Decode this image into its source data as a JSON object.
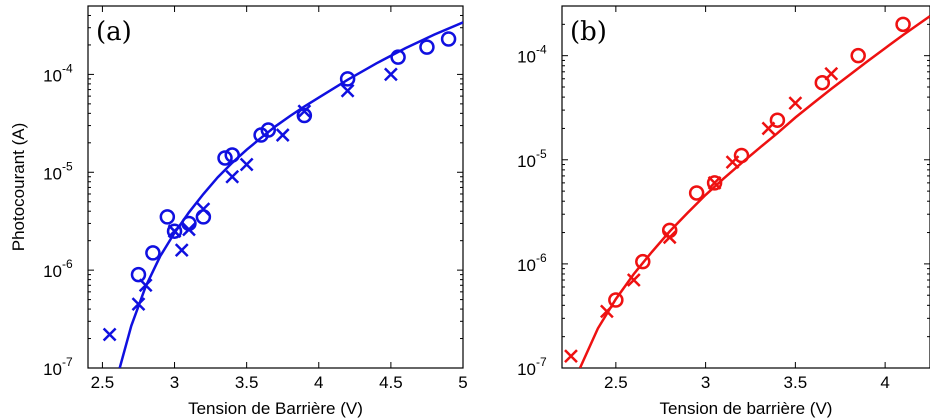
{
  "chart_data": [
    {
      "type": "scatter",
      "panel_label": "(a)",
      "xlabel": "Tension de Barrière (V)",
      "ylabel": "Photocourant (A)",
      "color": "#1010e0",
      "xlim": [
        2.4,
        5.0
      ],
      "ylim": [
        1e-07,
        0.0005
      ],
      "yscale": "log",
      "grid": false,
      "xticks": [
        2.5,
        3,
        3.5,
        4,
        4.5,
        5
      ],
      "xtick_labels": [
        "2.5",
        "3",
        "3.5",
        "4",
        "4.5",
        "5"
      ],
      "ytick_exponents": [
        -7,
        -6,
        -5,
        -4
      ],
      "ytick_labels": [
        "10",
        "10",
        "10",
        "10"
      ],
      "ytick_sup": [
        "-7",
        "-6",
        "-5",
        "-4"
      ],
      "series": [
        {
          "marker": "circle",
          "x": [
            2.75,
            2.85,
            2.95,
            3.0,
            3.1,
            3.2,
            3.35,
            3.4,
            3.6,
            3.65,
            3.9,
            4.2,
            4.55,
            4.75,
            4.9
          ],
          "y": [
            9e-07,
            1.5e-06,
            3.5e-06,
            2.5e-06,
            3e-06,
            3.5e-06,
            1.4e-05,
            1.5e-05,
            2.4e-05,
            2.7e-05,
            3.8e-05,
            9e-05,
            0.00015,
            0.00019,
            0.00023
          ]
        },
        {
          "marker": "x",
          "x": [
            2.55,
            2.75,
            2.8,
            3.0,
            3.05,
            3.1,
            3.2,
            3.4,
            3.5,
            3.75,
            3.9,
            4.2,
            4.5
          ],
          "y": [
            2.2e-07,
            4.5e-07,
            7e-07,
            2.5e-06,
            1.6e-06,
            2.6e-06,
            4.2e-06,
            9e-06,
            1.2e-05,
            2.4e-05,
            4.2e-05,
            6.8e-05,
            0.0001
          ]
        },
        {
          "marker": "line",
          "x": [
            2.62,
            2.7,
            2.8,
            2.9,
            3.0,
            3.1,
            3.2,
            3.3,
            3.4,
            3.5,
            3.6,
            3.7,
            3.8,
            3.9,
            4.0,
            4.2,
            4.4,
            4.6,
            4.8,
            5.0
          ],
          "y": [
            1e-07,
            2.7e-07,
            6.8e-07,
            1.38e-06,
            2.4e-06,
            3.9e-06,
            6e-06,
            8.9e-06,
            1.25e-05,
            1.7e-05,
            2.25e-05,
            2.95e-05,
            3.75e-05,
            4.7e-05,
            5.8e-05,
            8.8e-05,
            0.00013,
            0.000185,
            0.000255,
            0.00034
          ]
        }
      ]
    },
    {
      "type": "scatter",
      "panel_label": "(b)",
      "xlabel": "Tension de barrière (V)",
      "ylabel": "",
      "color": "#ee1111",
      "xlim": [
        2.2,
        4.25
      ],
      "ylim": [
        1e-07,
        0.0003
      ],
      "yscale": "log",
      "grid": false,
      "xticks": [
        2.5,
        3,
        3.5,
        4
      ],
      "xtick_labels": [
        "2.5",
        "3",
        "3.5",
        "4"
      ],
      "ytick_exponents": [
        -7,
        -6,
        -5,
        -4
      ],
      "ytick_labels": [
        "10",
        "10",
        "10",
        "10"
      ],
      "ytick_sup": [
        "-7",
        "-6",
        "-5",
        "-4"
      ],
      "series": [
        {
          "marker": "circle",
          "x": [
            2.5,
            2.65,
            2.8,
            2.95,
            3.05,
            3.2,
            3.4,
            3.65,
            3.85,
            4.1
          ],
          "y": [
            4.5e-07,
            1.05e-06,
            2.1e-06,
            4.8e-06,
            6e-06,
            1.1e-05,
            2.4e-05,
            5.5e-05,
            0.0001,
            0.0002
          ]
        },
        {
          "marker": "x",
          "x": [
            2.25,
            2.45,
            2.6,
            2.8,
            3.05,
            3.15,
            3.35,
            3.5,
            3.7
          ],
          "y": [
            1.3e-07,
            3.5e-07,
            7e-07,
            1.8e-06,
            6e-06,
            9.5e-06,
            2e-05,
            3.5e-05,
            6.7e-05
          ]
        },
        {
          "marker": "line",
          "x": [
            2.3,
            2.4,
            2.5,
            2.6,
            2.7,
            2.8,
            2.9,
            3.0,
            3.1,
            3.2,
            3.3,
            3.4,
            3.5,
            3.6,
            3.7,
            3.8,
            3.9,
            4.0,
            4.1,
            4.25
          ],
          "y": [
            1e-07,
            2.4e-07,
            4.6e-07,
            8e-07,
            1.3e-06,
            2.05e-06,
            3.1e-06,
            4.6e-06,
            6.6e-06,
            9.3e-06,
            1.3e-05,
            1.8e-05,
            2.55e-05,
            3.5e-05,
            4.8e-05,
            6.5e-05,
            8.8e-05,
            0.000118,
            0.000158,
            0.00024
          ]
        }
      ]
    }
  ]
}
